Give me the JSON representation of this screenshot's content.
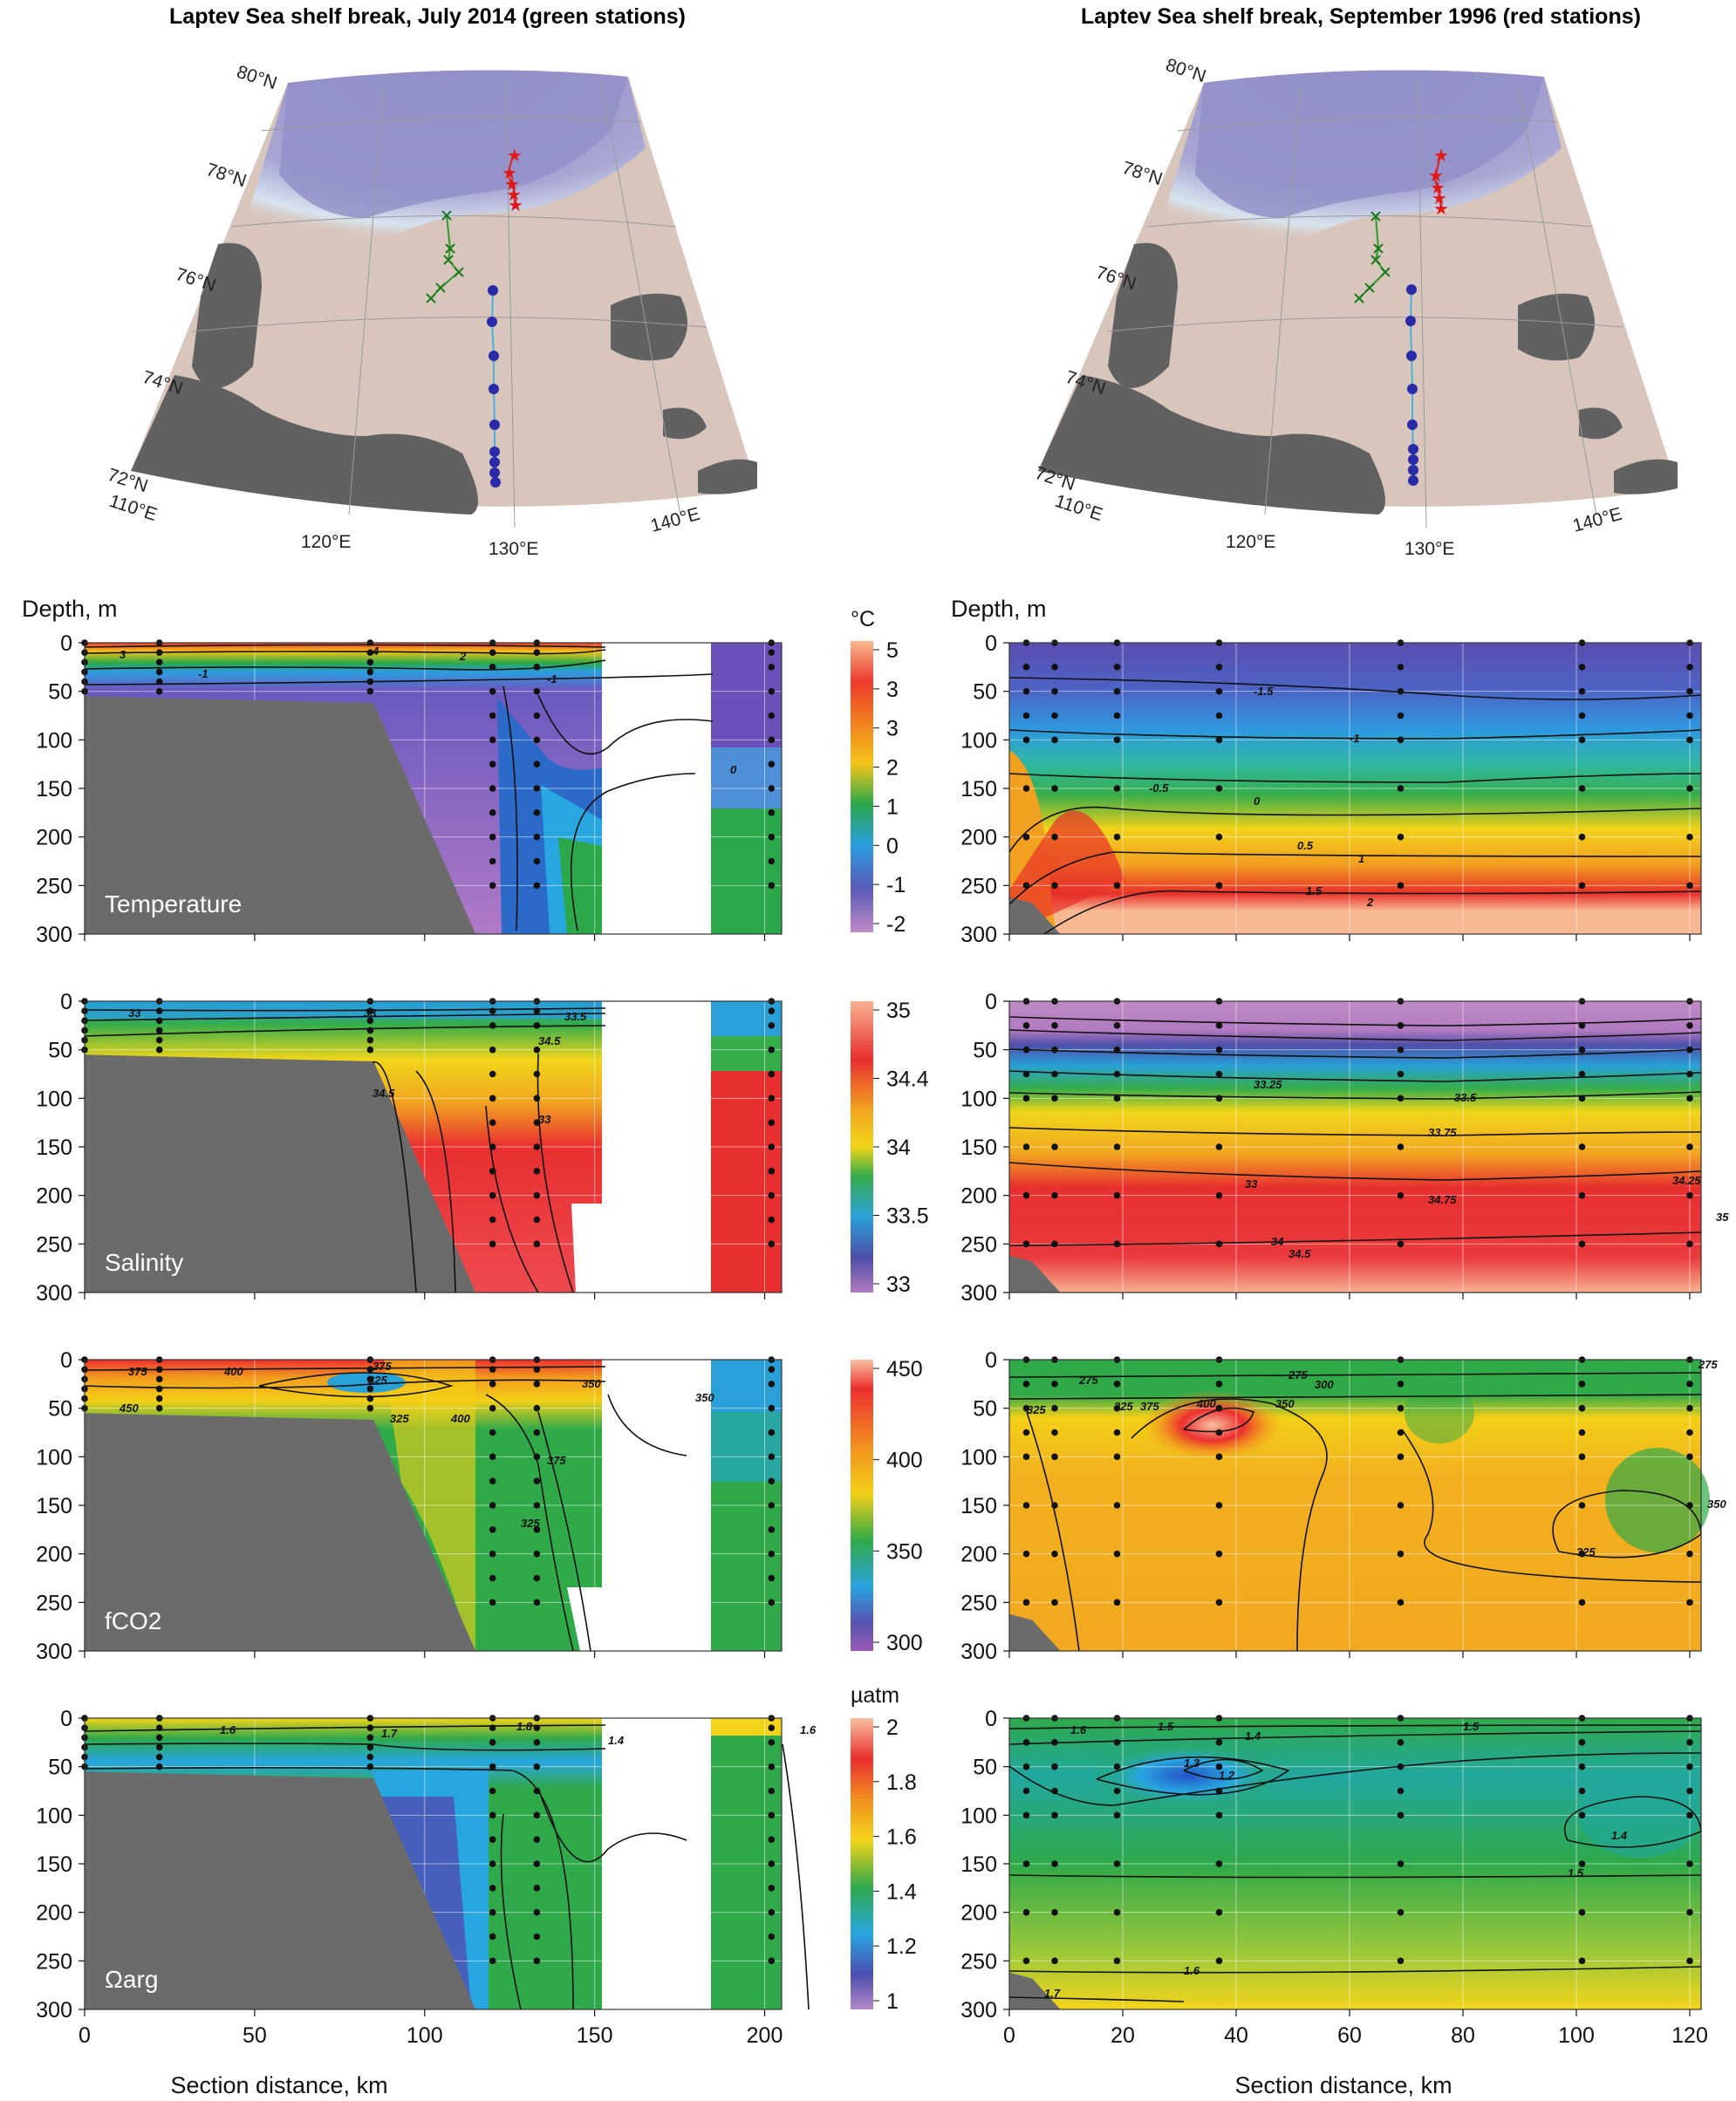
{
  "figure": {
    "map_left_title": "Laptev Sea shelf break, July 2014 (green stations)",
    "map_right_title": "Laptev Sea shelf break, September 1996 (red stations)",
    "lat_labels": [
      "80°N",
      "78°N",
      "76°N",
      "74°N",
      "72°N"
    ],
    "lon_labels": [
      "110°E",
      "120°E",
      "130°E",
      "140°E"
    ],
    "depth_label": "Depth, m",
    "xlabel": "Section distance, km"
  },
  "colorbars": [
    {
      "unit": "°C",
      "ticks": [
        "5",
        "3",
        "3",
        "2",
        "1",
        "0",
        "-1",
        "-2"
      ]
    },
    {
      "unit": "",
      "ticks": [
        "35",
        "34.4",
        "34",
        "33.5",
        "33"
      ]
    },
    {
      "unit": "",
      "ticks": [
        "450",
        "400",
        "350",
        "300"
      ]
    },
    {
      "unit": "µatm",
      "ticks": [
        "2",
        "1.8",
        "1.6",
        "1.4",
        "1.2",
        "1"
      ]
    }
  ],
  "chart_data": [
    {
      "type": "heatmap",
      "panel": "2014 temperature",
      "title": "Temperature",
      "xlim": [
        0,
        205
      ],
      "ylim": [
        300,
        0
      ],
      "xticks": [
        0,
        50,
        100,
        150,
        200
      ],
      "yticks": [
        0,
        50,
        100,
        150,
        200,
        250,
        300
      ],
      "contour_labels": [
        "3",
        "4",
        "2",
        "-1",
        "-1",
        "0"
      ],
      "stations_km": [
        0,
        22,
        84,
        120,
        133,
        202
      ]
    },
    {
      "type": "heatmap",
      "panel": "1996 temperature",
      "title": "",
      "xlim": [
        0,
        122
      ],
      "ylim": [
        300,
        0
      ],
      "xticks": [
        0,
        20,
        40,
        60,
        80,
        100,
        120
      ],
      "yticks": [
        0,
        50,
        100,
        150,
        200,
        250,
        300
      ],
      "contour_labels": [
        "-1.5",
        "-1",
        "-0.5",
        "0",
        "0.5",
        "1",
        "1.5",
        "2"
      ],
      "stations_km": [
        3,
        8,
        19,
        37,
        69,
        101,
        120
      ]
    },
    {
      "type": "heatmap",
      "panel": "2014 salinity",
      "title": "Salinity",
      "xlim": [
        0,
        205
      ],
      "ylim": [
        300,
        0
      ],
      "xticks": [
        0,
        50,
        100,
        150,
        200
      ],
      "yticks": [
        0,
        50,
        100,
        150,
        200,
        250,
        300
      ],
      "contour_labels": [
        "33",
        "33",
        "33.5",
        "34.5",
        "34.5",
        "33"
      ],
      "stations_km": [
        0,
        22,
        84,
        120,
        133,
        202
      ]
    },
    {
      "type": "heatmap",
      "panel": "1996 salinity",
      "title": "",
      "xlim": [
        0,
        122
      ],
      "ylim": [
        300,
        0
      ],
      "xticks": [
        0,
        20,
        40,
        60,
        80,
        100,
        120
      ],
      "yticks": [
        0,
        50,
        100,
        150,
        200,
        250,
        300
      ],
      "contour_labels": [
        "33.25",
        "33.5",
        "33.75",
        "33",
        "34",
        "34.25",
        "34.5",
        "34.75",
        "35"
      ],
      "stations_km": [
        3,
        8,
        19,
        37,
        69,
        101,
        120
      ]
    },
    {
      "type": "heatmap",
      "panel": "2014 fCO2",
      "title": "fCO2",
      "xlim": [
        0,
        205
      ],
      "ylim": [
        300,
        0
      ],
      "xticks": [
        0,
        50,
        100,
        150,
        200
      ],
      "yticks": [
        0,
        50,
        100,
        150,
        200,
        250,
        300
      ],
      "contour_labels": [
        "375",
        "400",
        "375",
        "325",
        "350",
        "450",
        "325",
        "400",
        "375",
        "325",
        "350"
      ],
      "stations_km": [
        0,
        22,
        84,
        120,
        133,
        202
      ]
    },
    {
      "type": "heatmap",
      "panel": "1996 fCO2",
      "title": "",
      "xlim": [
        0,
        122
      ],
      "ylim": [
        300,
        0
      ],
      "xticks": [
        0,
        20,
        40,
        60,
        80,
        100,
        120
      ],
      "yticks": [
        0,
        50,
        100,
        150,
        200,
        250,
        300
      ],
      "contour_labels": [
        "275",
        "275",
        "275",
        "300",
        "325",
        "325",
        "375",
        "400",
        "350",
        "325",
        "350"
      ],
      "stations_km": [
        3,
        8,
        19,
        37,
        69,
        101,
        120
      ]
    },
    {
      "type": "heatmap",
      "panel": "2014 Omega arg",
      "title": "Ωarg",
      "xlim": [
        0,
        205
      ],
      "ylim": [
        300,
        0
      ],
      "xticks": [
        0,
        50,
        100,
        150,
        200
      ],
      "yticks": [
        0,
        50,
        100,
        150,
        200,
        250,
        300
      ],
      "contour_labels": [
        "1.6",
        "1.7",
        "1.8",
        "1.4",
        "1.6"
      ],
      "stations_km": [
        0,
        22,
        84,
        120,
        133,
        202
      ]
    },
    {
      "type": "heatmap",
      "panel": "1996 Omega arg",
      "title": "",
      "xlim": [
        0,
        122
      ],
      "ylim": [
        300,
        0
      ],
      "xticks": [
        0,
        20,
        40,
        60,
        80,
        100,
        120
      ],
      "yticks": [
        0,
        50,
        100,
        150,
        200,
        250,
        300
      ],
      "contour_labels": [
        "1.6",
        "1.5",
        "1.4",
        "1.3",
        "1.2",
        "1.5",
        "1.4",
        "1.5",
        "1.6",
        "1.7"
      ],
      "stations_km": [
        3,
        8,
        19,
        37,
        69,
        101,
        120
      ]
    }
  ]
}
